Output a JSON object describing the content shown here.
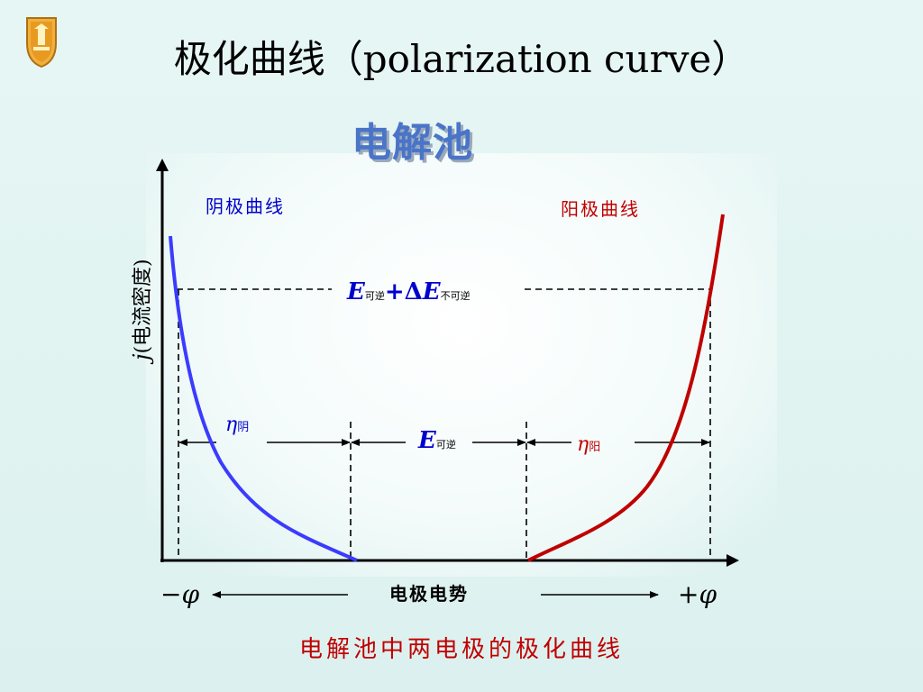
{
  "title": "极化曲线（polarization curve）",
  "subtitle": "电解池",
  "caption": "电解池中两电极的极化曲线",
  "labels": {
    "cathode_curve": "阴极曲线",
    "anode_curve": "阳极曲线",
    "y_axis_j": "j",
    "y_axis_text": "(电流密度)",
    "x_axis": "电极电势",
    "neg_phi_sign": "−",
    "pos_phi_sign": "+",
    "phi": "φ",
    "eta": "η",
    "eta_cathode_sub": "阴",
    "eta_anode_sub": "阳",
    "E": "E",
    "rev_sub": "可逆",
    "plus_delta": "+Δ",
    "irrev_sub": "不可逆"
  },
  "colors": {
    "cathode": "#3b3bff",
    "anode": "#c00000",
    "label_blue": "#0000cc",
    "label_red": "#c00000",
    "subtitle": "#4a74c8"
  },
  "icons": {
    "logo": "university-crest-icon"
  }
}
